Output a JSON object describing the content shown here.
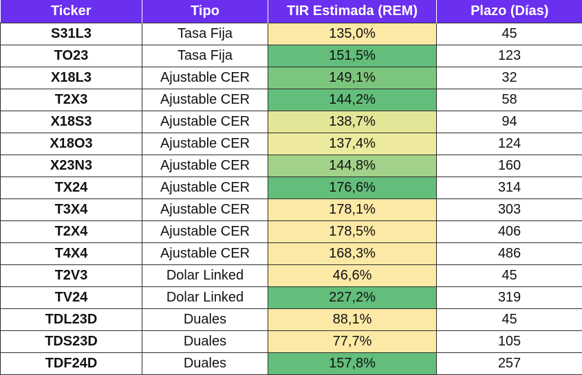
{
  "table": {
    "headers": [
      "Ticker",
      "Tipo",
      "TIR Estimada (REM)",
      "Plazo (Días)"
    ],
    "rows": [
      {
        "ticker": "S31L3",
        "tipo": "Tasa Fija",
        "tir": "135,0%",
        "plazo": "45",
        "tir_color": "#fde9a6"
      },
      {
        "ticker": "TO23",
        "tipo": "Tasa Fija",
        "tir": "151,5%",
        "plazo": "123",
        "tir_color": "#63be7b"
      },
      {
        "ticker": "X18L3",
        "tipo": "Ajustable CER",
        "tir": "149,1%",
        "plazo": "32",
        "tir_color": "#7cc57d"
      },
      {
        "ticker": "T2X3",
        "tipo": "Ajustable CER",
        "tir": "144,2%",
        "plazo": "58",
        "tir_color": "#63be7b"
      },
      {
        "ticker": "X18S3",
        "tipo": "Ajustable CER",
        "tir": "138,7%",
        "plazo": "94",
        "tir_color": "#e3e697"
      },
      {
        "ticker": "X18O3",
        "tipo": "Ajustable CER",
        "tir": "137,4%",
        "plazo": "124",
        "tir_color": "#edea9d"
      },
      {
        "ticker": "X23N3",
        "tipo": "Ajustable CER",
        "tir": "144,8%",
        "plazo": "160",
        "tir_color": "#a2d289"
      },
      {
        "ticker": "TX24",
        "tipo": "Ajustable CER",
        "tir": "176,6%",
        "plazo": "314",
        "tir_color": "#63be7b"
      },
      {
        "ticker": "T3X4",
        "tipo": "Ajustable CER",
        "tir": "178,1%",
        "plazo": "303",
        "tir_color": "#fde9a6"
      },
      {
        "ticker": "T2X4",
        "tipo": "Ajustable CER",
        "tir": "178,5%",
        "plazo": "406",
        "tir_color": "#fde9a6"
      },
      {
        "ticker": "T4X4",
        "tipo": "Ajustable CER",
        "tir": "168,3%",
        "plazo": "486",
        "tir_color": "#fde9a6"
      },
      {
        "ticker": "T2V3",
        "tipo": "Dolar Linked",
        "tir": "46,6%",
        "plazo": "45",
        "tir_color": "#fde9a6"
      },
      {
        "ticker": "TV24",
        "tipo": "Dolar Linked",
        "tir": "227,2%",
        "plazo": "319",
        "tir_color": "#63be7b"
      },
      {
        "ticker": "TDL23D",
        "tipo": "Duales",
        "tir": "88,1%",
        "plazo": "45",
        "tir_color": "#fde9a6"
      },
      {
        "ticker": "TDS23D",
        "tipo": "Duales",
        "tir": "77,7%",
        "plazo": "105",
        "tir_color": "#fde9a6"
      },
      {
        "ticker": "TDF24D",
        "tipo": "Duales",
        "tir": "157,8%",
        "plazo": "257",
        "tir_color": "#63be7b"
      }
    ]
  },
  "colors": {
    "header_bg": "#6b2ff0",
    "header_text": "#ffffff",
    "border": "#2b2b2b"
  }
}
